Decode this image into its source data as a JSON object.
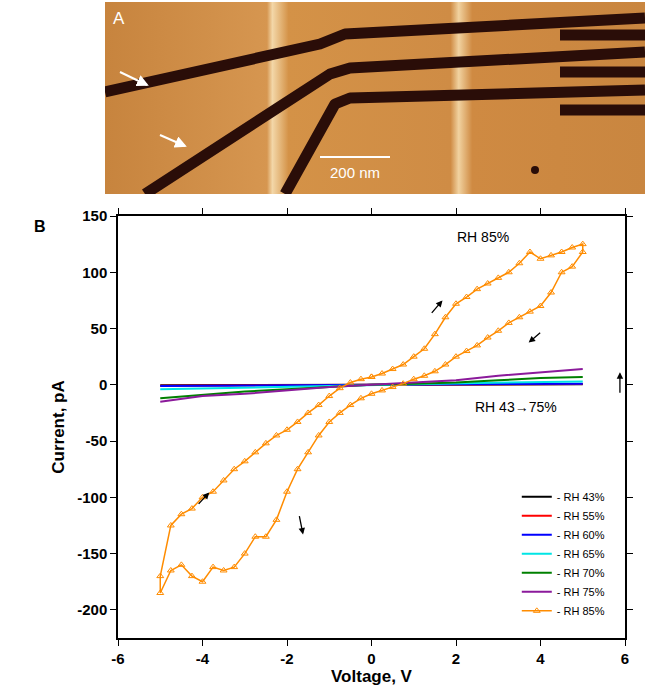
{
  "panel_a": {
    "label": "A",
    "scale_bar": "200 nm"
  },
  "chart_data": {
    "type": "line",
    "label": "B",
    "x_label": "Voltage, V",
    "y_label": "Current, pA",
    "xlim": [
      -6,
      6
    ],
    "xticks": [
      -6,
      -4,
      -2,
      0,
      2,
      4,
      6
    ],
    "ylim": [
      -225,
      150
    ],
    "yticks": [
      -200,
      -150,
      -100,
      -50,
      0,
      50,
      100,
      150
    ],
    "grid": false,
    "legend": "bottom right",
    "annotations": [
      "RH 85%",
      "RH 43→75%"
    ],
    "series": [
      {
        "name": "- RH 43%",
        "color": "#000000",
        "x": [
          -5,
          -2.5,
          0,
          2.5,
          5
        ],
        "values": [
          -0.5,
          -0.2,
          0,
          0.2,
          0.5
        ]
      },
      {
        "name": "- RH 55%",
        "color": "#ff0000",
        "x": [
          -5,
          -2.5,
          0,
          2.5,
          5
        ],
        "values": [
          -0.8,
          -0.4,
          0,
          0.4,
          0.8
        ]
      },
      {
        "name": "- RH 60%",
        "color": "#0000ff",
        "x": [
          -5,
          -2.5,
          0,
          2.5,
          5
        ],
        "values": [
          -1,
          -0.5,
          0,
          0.5,
          1
        ]
      },
      {
        "name": "- RH 65%",
        "color": "#00e5e5",
        "x": [
          -5,
          -2.5,
          0,
          2.5,
          5
        ],
        "values": [
          -4,
          -2,
          0,
          1.5,
          3
        ]
      },
      {
        "name": "- RH 70%",
        "color": "#008000",
        "x": [
          -5,
          -4,
          -3,
          -2,
          -1,
          0,
          1,
          2,
          3,
          4,
          5
        ],
        "values": [
          -12,
          -9,
          -6,
          -4,
          -2,
          0,
          1,
          2,
          4,
          6,
          7
        ]
      },
      {
        "name": "- RH 75%",
        "color": "#8b1a9b",
        "x": [
          -5,
          -4,
          -3,
          -2,
          -1,
          0,
          1,
          2,
          3,
          4,
          5
        ],
        "values": [
          -15,
          -10,
          -8,
          -5,
          -2,
          0,
          2,
          4,
          8,
          11,
          14
        ]
      },
      {
        "name": "- RH 85%",
        "color": "#ff8c00",
        "marker": "triangle-up-open",
        "x": [
          0,
          0.25,
          0.5,
          0.75,
          1,
          1.25,
          1.5,
          1.75,
          2,
          2.25,
          2.5,
          2.75,
          3,
          3.25,
          3.5,
          3.75,
          4,
          4.25,
          4.5,
          4.75,
          5,
          5,
          4.75,
          4.5,
          4.25,
          4,
          3.75,
          3.5,
          3.25,
          3,
          2.75,
          2.5,
          2.25,
          2,
          1.75,
          1.5,
          1.25,
          1,
          0.75,
          0.5,
          0.25,
          0,
          -0.25,
          -0.5,
          -0.75,
          -1,
          -1.25,
          -1.5,
          -1.75,
          -2,
          -2.25,
          -2.5,
          -2.75,
          -3,
          -3.25,
          -3.5,
          -3.75,
          -4,
          -4.25,
          -4.5,
          -4.75,
          -5,
          -5,
          -4.75,
          -4.5,
          -4.25,
          -4,
          -3.75,
          -3.5,
          -3.25,
          -3,
          -2.75,
          -2.5,
          -2.25,
          -2,
          -1.75,
          -1.5,
          -1.25,
          -1,
          -0.75,
          -0.5,
          -0.25,
          0
        ],
        "values": [
          7,
          10,
          14,
          18,
          25,
          32,
          45,
          60,
          72,
          78,
          85,
          90,
          95,
          100,
          108,
          118,
          112,
          115,
          118,
          122,
          125,
          118,
          105,
          100,
          82,
          70,
          65,
          60,
          55,
          48,
          42,
          35,
          30,
          25,
          18,
          12,
          8,
          5,
          1,
          -2,
          -5,
          -8,
          -12,
          -18,
          -25,
          -33,
          -45,
          -60,
          -75,
          -95,
          -120,
          -135,
          -135,
          -150,
          -162,
          -165,
          -162,
          -175,
          -170,
          -160,
          -165,
          -185,
          -170,
          -125,
          -115,
          -110,
          -100,
          -95,
          -85,
          -75,
          -68,
          -60,
          -52,
          -45,
          -40,
          -33,
          -25,
          -18,
          -10,
          -3,
          2,
          5,
          7
        ]
      }
    ]
  }
}
